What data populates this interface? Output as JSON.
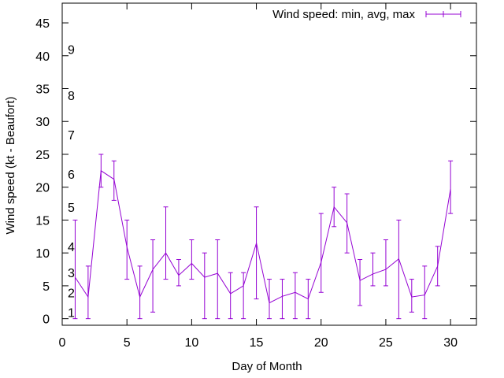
{
  "chart_data": {
    "type": "line",
    "xlabel": "Day of Month",
    "ylabel": "Wind speed (kt - Beaufort)",
    "xlim": [
      0,
      32
    ],
    "ylim": [
      -1,
      48
    ],
    "xticks": [
      0,
      5,
      10,
      15,
      20,
      25,
      30
    ],
    "yticks": [
      0,
      5,
      10,
      15,
      20,
      25,
      30,
      35,
      40,
      45
    ],
    "grid": false,
    "legend_position": "top-right",
    "series_color": "#9400d3",
    "series": [
      {
        "name": "Wind speed: min, avg, max",
        "x": [
          1,
          2,
          3,
          4,
          5,
          6,
          7,
          8,
          9,
          10,
          11,
          12,
          13,
          14,
          15,
          16,
          17,
          18,
          19,
          20,
          21,
          22,
          23,
          24,
          25,
          26,
          27,
          28,
          29,
          30
        ],
        "min": [
          0,
          0,
          20,
          18,
          6,
          0,
          1,
          6,
          5,
          6,
          0,
          0,
          0,
          0,
          3,
          0,
          0,
          0,
          0,
          4,
          14,
          10,
          2,
          5,
          5,
          0,
          1,
          0,
          5,
          16
        ],
        "avg": [
          6.3,
          3.3,
          22.5,
          21.2,
          10.9,
          3.3,
          7.5,
          10,
          6.6,
          8.4,
          6.3,
          6.9,
          3.8,
          5,
          11.5,
          2.4,
          3.4,
          4,
          3,
          8.6,
          17,
          14.6,
          5.8,
          6.8,
          7.5,
          9.1,
          3.3,
          3.6,
          8,
          19.7
        ],
        "max": [
          15,
          8,
          25,
          24,
          15,
          8,
          12,
          17,
          9,
          12,
          10,
          12,
          7,
          7,
          17,
          6,
          6,
          7,
          6,
          16,
          20,
          19,
          9,
          10,
          12,
          15,
          6,
          8,
          11,
          24
        ]
      }
    ],
    "beaufort_annotations": [
      {
        "label": "1",
        "y": 1
      },
      {
        "label": "2",
        "y": 4
      },
      {
        "label": "3",
        "y": 7
      },
      {
        "label": "4",
        "y": 11
      },
      {
        "label": "5",
        "y": 17
      },
      {
        "label": "6",
        "y": 22
      },
      {
        "label": "7",
        "y": 28
      },
      {
        "label": "8",
        "y": 34
      },
      {
        "label": "9",
        "y": 41
      }
    ]
  }
}
